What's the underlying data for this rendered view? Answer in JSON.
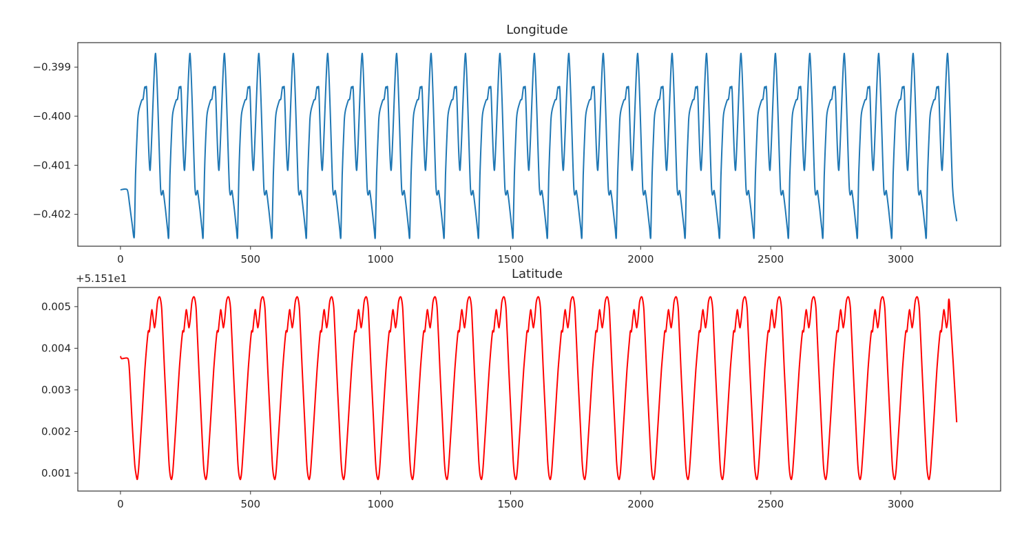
{
  "chart_data": [
    {
      "type": "line",
      "title": "Longitude",
      "color": "#1f77b4",
      "xlabel": "",
      "ylabel": "",
      "offset_text": "",
      "grid": false,
      "xlim": [
        -164,
        3384
      ],
      "ylim": [
        -0.40265,
        -0.3985
      ],
      "xticks": [
        0,
        500,
        1000,
        1500,
        2000,
        2500,
        3000
      ],
      "xtick_labels": [
        "0",
        "500",
        "1000",
        "1500",
        "2000",
        "2500",
        "3000"
      ],
      "yticks": [
        -0.402,
        -0.401,
        -0.4,
        -0.399
      ],
      "ytick_labels": [
        "−0.402",
        "−0.401",
        "−0.400",
        "−0.399"
      ],
      "series": {
        "name": "Longitude",
        "lead_in": [
          [
            0,
            -0.4015
          ],
          [
            26,
            -0.4015
          ],
          [
            35,
            -0.4018
          ],
          [
            45,
            -0.4022
          ]
        ],
        "cycle": {
          "start": 53,
          "period": 132.4,
          "shape": [
            [
              0,
              -0.40245
            ],
            [
              5,
              -0.4012
            ],
            [
              13,
              -0.4001
            ],
            [
              18,
              -0.39987
            ],
            [
              29,
              -0.39967
            ],
            [
              34,
              -0.39965
            ],
            [
              40,
              -0.39941
            ],
            [
              45,
              -0.39943
            ],
            [
              48,
              -0.3995
            ],
            [
              61,
              -0.4011
            ],
            [
              82,
              -0.39872
            ],
            [
              101,
              -0.40145
            ],
            [
              111,
              -0.40152
            ],
            [
              120,
              -0.4019
            ],
            [
              128,
              -0.4023
            ]
          ]
        },
        "end_x": 3202,
        "tail": [
          [
            3215,
            -0.40214
          ]
        ]
      }
    },
    {
      "type": "line",
      "title": "Latitude",
      "color": "#ff0000",
      "xlabel": "",
      "ylabel": "",
      "offset_text": "+5.151e1",
      "grid": false,
      "xlim": [
        -164,
        3384
      ],
      "ylim": [
        0.00057,
        0.00546
      ],
      "xticks": [
        0,
        500,
        1000,
        1500,
        2000,
        2500,
        3000
      ],
      "xtick_labels": [
        "0",
        "500",
        "1000",
        "1500",
        "2000",
        "2500",
        "3000"
      ],
      "yticks": [
        0.001,
        0.002,
        0.003,
        0.004,
        0.005
      ],
      "ytick_labels": [
        "0.001",
        "0.002",
        "0.003",
        "0.004",
        "0.005"
      ],
      "series": {
        "name": "Latitude",
        "lead_in": [
          [
            0,
            0.00381
          ],
          [
            5,
            0.00375
          ],
          [
            29,
            0.00375
          ],
          [
            35,
            0.0034
          ],
          [
            45,
            0.0022
          ],
          [
            55,
            0.0012
          ]
        ],
        "cycle": {
          "start": 64,
          "period": 132.4,
          "shape": [
            [
              0,
              0.00085
            ],
            [
              5,
              0.00105
            ],
            [
              10,
              0.0015
            ],
            [
              20,
              0.0025
            ],
            [
              30,
              0.0035
            ],
            [
              42,
              0.00438
            ],
            [
              47,
              0.0044
            ],
            [
              52,
              0.0047
            ],
            [
              57,
              0.00493
            ],
            [
              62,
              0.0047
            ],
            [
              67,
              0.00449
            ],
            [
              72,
              0.0047
            ],
            [
              78,
              0.0051
            ],
            [
              84,
              0.00523
            ],
            [
              89,
              0.0052
            ],
            [
              95,
              0.0049
            ],
            [
              105,
              0.0035
            ],
            [
              115,
              0.0022
            ],
            [
              122,
              0.0013
            ],
            [
              127,
              0.00095
            ]
          ]
        },
        "end_x": 3190,
        "tail": [
          [
            3215,
            0.00222
          ]
        ]
      }
    }
  ]
}
